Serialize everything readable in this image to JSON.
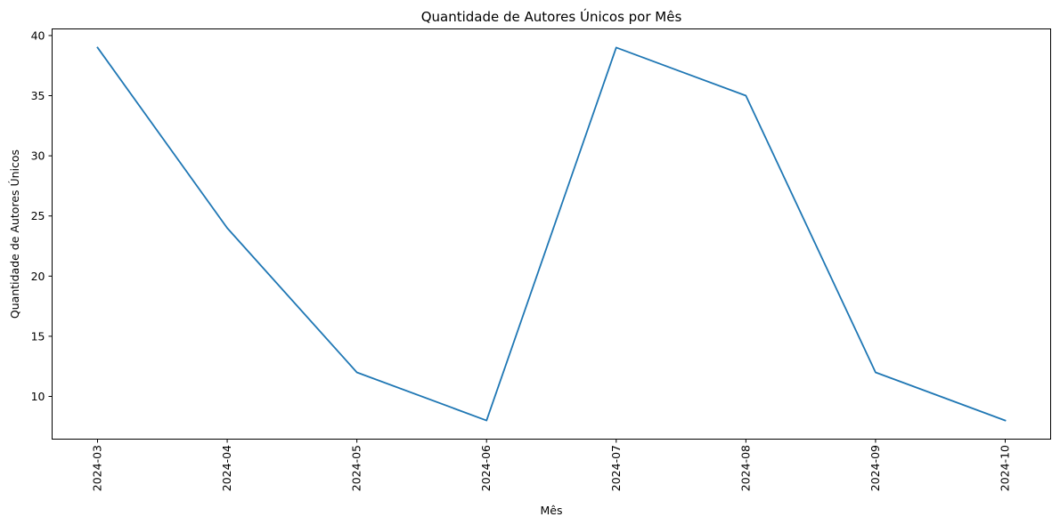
{
  "chart_data": {
    "type": "line",
    "title": "Quantidade de Autores Únicos por Mês",
    "xlabel": "Mês",
    "ylabel": "Quantidade de Autores Únicos",
    "categories": [
      "2024-03",
      "2024-04",
      "2024-05",
      "2024-06",
      "2024-07",
      "2024-08",
      "2024-09",
      "2024-10"
    ],
    "series": [
      {
        "values": [
          39,
          24,
          12,
          8,
          39,
          35,
          12,
          8
        ],
        "color": "#1f77b4"
      }
    ],
    "yticks": [
      "10",
      "15",
      "20",
      "25",
      "30",
      "35",
      "40"
    ],
    "ylim": [
      6.45,
      40.55
    ],
    "grid": false,
    "legend": "none"
  }
}
